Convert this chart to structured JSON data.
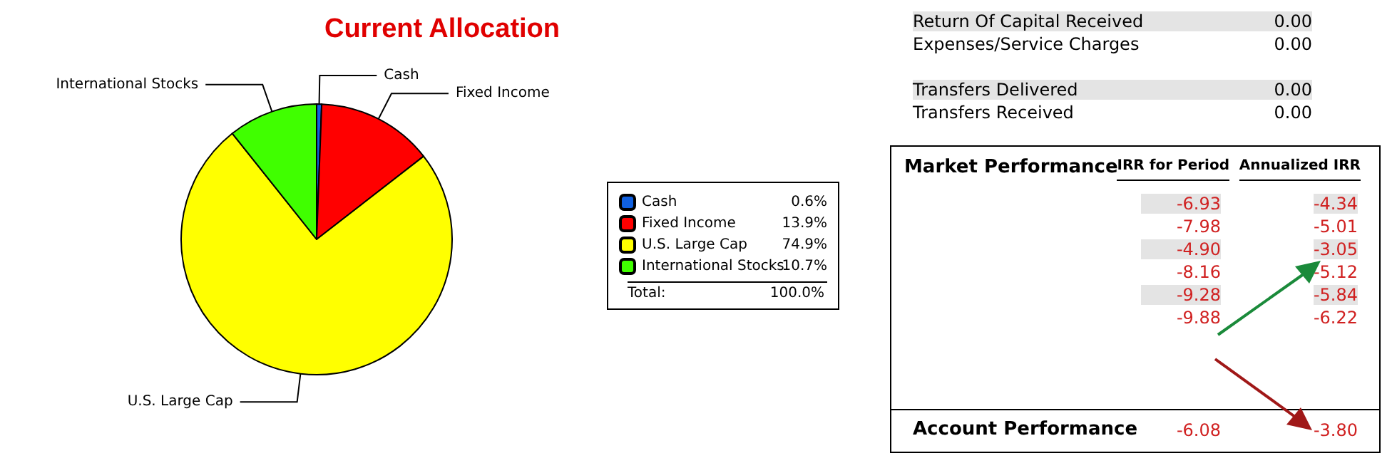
{
  "chart_data": [
    {
      "type": "pie",
      "title": "Current Allocation",
      "categories": [
        "Cash",
        "Fixed Income",
        "U.S. Large Cap",
        "International Stocks"
      ],
      "values": [
        0.6,
        13.9,
        74.9,
        10.7
      ],
      "colors": [
        "#1060e0",
        "#ff0000",
        "#ffff00",
        "#40ff00"
      ],
      "value_labels": [
        "0.6%",
        "13.9%",
        "74.9%",
        "10.7%"
      ],
      "legend": "right",
      "annotations": [
        "Total:",
        "100.0%"
      ]
    },
    {
      "type": "other",
      "annotations": [
        "Return Of Capital Received",
        "0.00",
        "Expenses/Service Charges",
        "0.00",
        "Transfers Delivered",
        "0.00",
        "Transfers Received",
        "0.00",
        "Market Performance",
        "IRR for Period",
        "Annualized IRR",
        "-6.93",
        "-4.34",
        "-7.98",
        "-5.01",
        "-4.90",
        "-3.05",
        "-8.16",
        "-5.12",
        "-9.28",
        "-5.84",
        "-9.88",
        "-6.22",
        "Account Performance",
        "-6.08",
        "-3.80"
      ]
    }
  ]
}
